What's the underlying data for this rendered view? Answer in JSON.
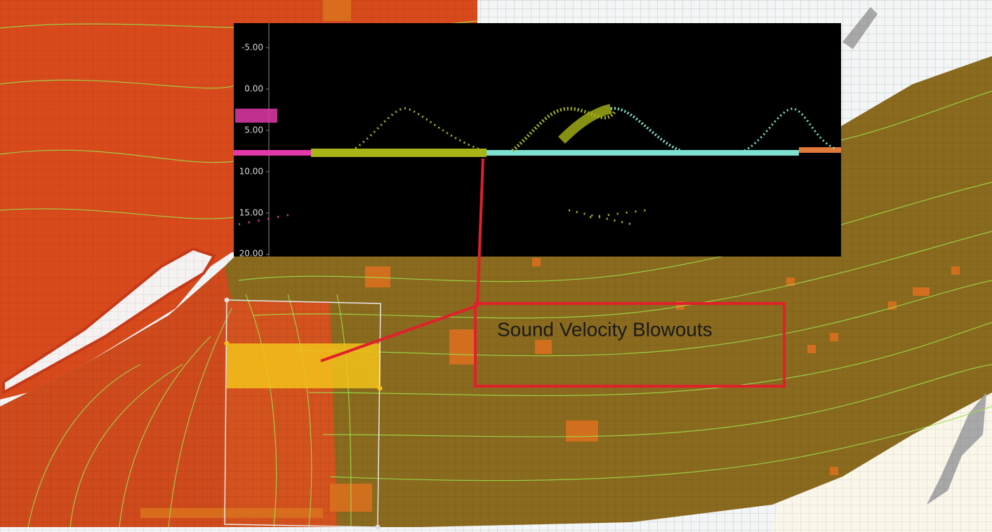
{
  "profile": {
    "yticks": [
      "-5.00",
      "0.00",
      "5.00",
      "10.00",
      "15.00",
      "20.00"
    ]
  },
  "annotation": "Sound Velocity Blowouts"
}
